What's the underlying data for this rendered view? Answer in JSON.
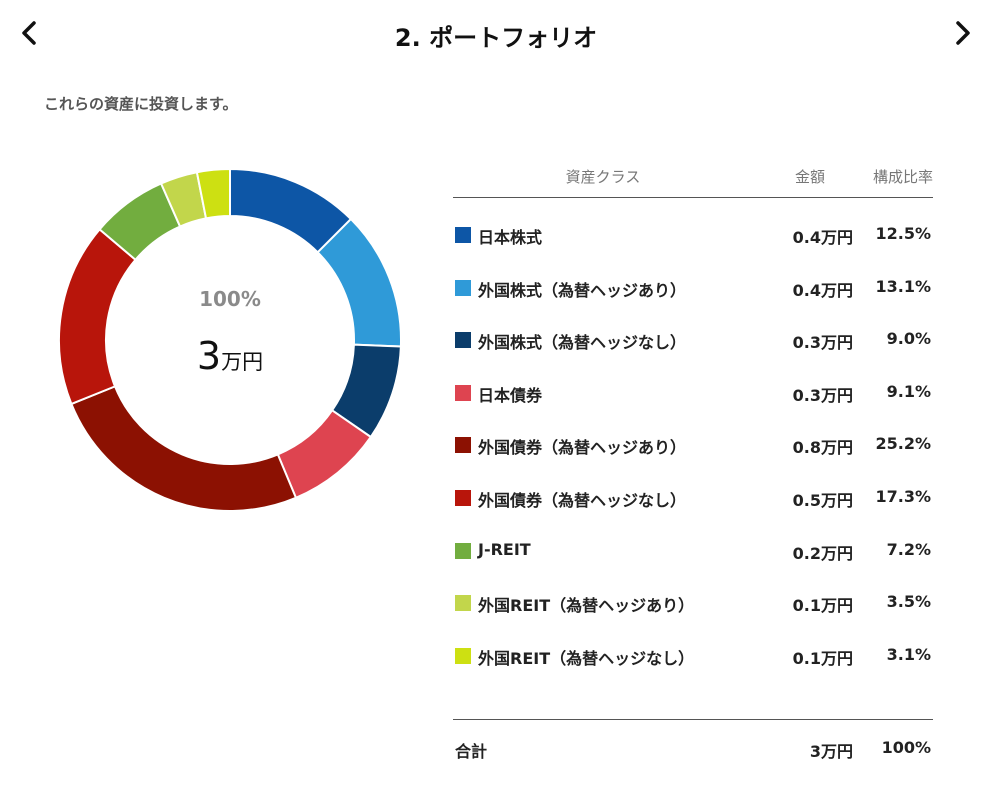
{
  "header": {
    "title": "2. ポートフォリオ"
  },
  "subtitle": "これらの資産に投資します。",
  "donut": {
    "center_percent": "100%",
    "center_amount_number": "3",
    "center_amount_unit": "万円"
  },
  "table": {
    "headers": {
      "asset_class": "資産クラス",
      "amount": "金額",
      "ratio": "構成比率"
    },
    "footer": {
      "label": "合計",
      "amount": "3万円",
      "ratio": "100%"
    }
  },
  "chart_data": {
    "type": "pie",
    "style": "donut",
    "slices": [
      {
        "label": "日本株式",
        "amount": "0.4万円",
        "ratio_label": "12.5%",
        "value": 12.5,
        "color": "#0d56a6"
      },
      {
        "label": "外国株式（為替ヘッジあり）",
        "amount": "0.4万円",
        "ratio_label": "13.1%",
        "value": 13.1,
        "color": "#2f9ad8"
      },
      {
        "label": "外国株式（為替ヘッジなし）",
        "amount": "0.3万円",
        "ratio_label": "9.0%",
        "value": 9.0,
        "color": "#0b3d6b"
      },
      {
        "label": "日本債券",
        "amount": "0.3万円",
        "ratio_label": "9.1%",
        "value": 9.1,
        "color": "#de4450"
      },
      {
        "label": "外国債券（為替ヘッジあり）",
        "amount": "0.8万円",
        "ratio_label": "25.2%",
        "value": 25.2,
        "color": "#8c1102"
      },
      {
        "label": "外国債券（為替ヘッジなし）",
        "amount": "0.5万円",
        "ratio_label": "17.3%",
        "value": 17.3,
        "color": "#b8150b"
      },
      {
        "label": "J-REIT",
        "amount": "0.2万円",
        "ratio_label": "7.2%",
        "value": 7.2,
        "color": "#72ad3f"
      },
      {
        "label": "外国REIT（為替ヘッジあり）",
        "amount": "0.1万円",
        "ratio_label": "3.5%",
        "value": 3.5,
        "color": "#c2d64b"
      },
      {
        "label": "外国REIT（為替ヘッジなし）",
        "amount": "0.1万円",
        "ratio_label": "3.1%",
        "value": 3.1,
        "color": "#cde012"
      }
    ]
  }
}
